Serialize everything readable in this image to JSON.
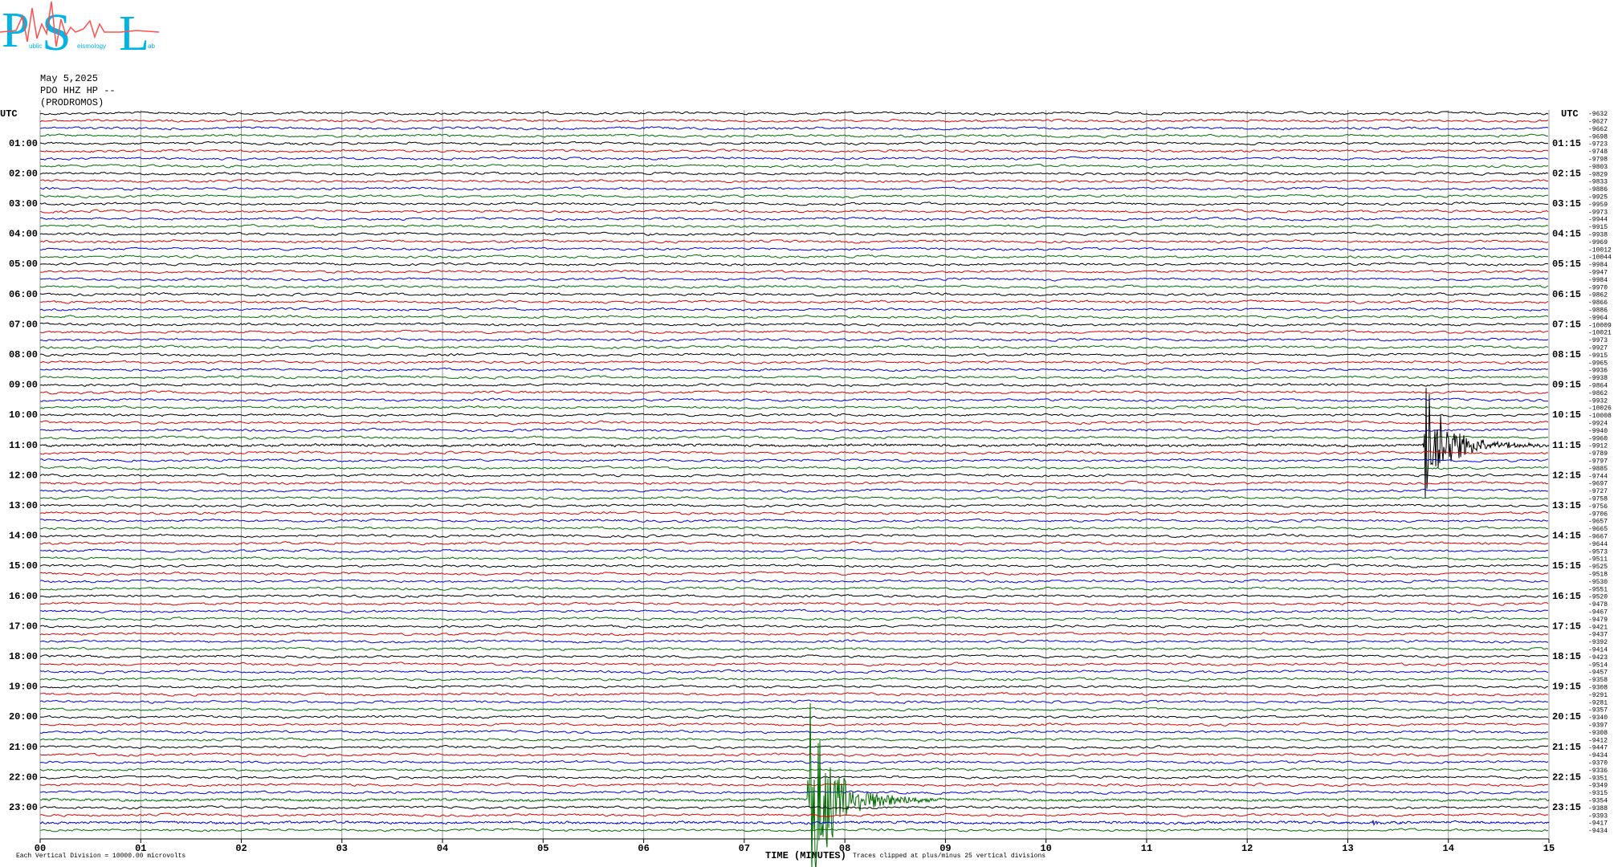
{
  "logo": {
    "letters": [
      "P",
      "S",
      "L"
    ],
    "words": [
      "ublic",
      "eismology",
      "ab"
    ]
  },
  "header": {
    "date": "May 5,2025",
    "station": "PDO HHZ HP --",
    "location": "(PRODROMOS)"
  },
  "left_axis": {
    "title": "UTC",
    "labels": [
      "01:00",
      "02:00",
      "03:00",
      "04:00",
      "05:00",
      "06:00",
      "07:00",
      "08:00",
      "09:00",
      "10:00",
      "11:00",
      "12:00",
      "13:00",
      "14:00",
      "15:00",
      "16:00",
      "17:00",
      "18:00",
      "19:00",
      "20:00",
      "21:00",
      "22:00",
      "23:00"
    ]
  },
  "right_axis": {
    "title": "UTC",
    "labels": [
      "01:15",
      "02:15",
      "03:15",
      "04:15",
      "05:15",
      "06:15",
      "07:15",
      "08:15",
      "09:15",
      "10:15",
      "11:15",
      "12:15",
      "13:15",
      "14:15",
      "15:15",
      "16:15",
      "17:15",
      "18:15",
      "19:15",
      "20:15",
      "21:15",
      "22:15",
      "23:15"
    ]
  },
  "trace_offsets": [
    -9632,
    -9627,
    -9662,
    -9698,
    -9723,
    -9748,
    -9798,
    -9803,
    -9829,
    -9833,
    -9886,
    -9925,
    -9959,
    -9973,
    -9944,
    -9915,
    -9938,
    -9969,
    -10012,
    -10044,
    -9984,
    -9947,
    -9984,
    -9970,
    -9862,
    -9866,
    -9886,
    -9964,
    -10009,
    -10021,
    -9973,
    -9927,
    -9915,
    -9965,
    -9936,
    -9938,
    -9864,
    -9862,
    -9932,
    -10026,
    -10008,
    -9924,
    -9940,
    -9960,
    -9912,
    -9789,
    -9797,
    -9885,
    -9744,
    -9697,
    -9727,
    -9758,
    -9756,
    -9706,
    -9657,
    -9665,
    -9667,
    -9644,
    -9573,
    -9511,
    -9525,
    -9518,
    -9530,
    -9551,
    -9520,
    -9478,
    -9467,
    -9479,
    -9421,
    -9437,
    -9392,
    -9414,
    -9423,
    -9514,
    -9457,
    -9358,
    -9308,
    -9291,
    -9281,
    -9357,
    -9340,
    -9397,
    -9308,
    -9412,
    -9447,
    -9434,
    -9370,
    -9336,
    -9351,
    -9349,
    -9315,
    -9354,
    -9388,
    -9393,
    -9417,
    -9434
  ],
  "trace_colors": [
    "#000000",
    "#e00000",
    "#0000e0",
    "#006e00"
  ],
  "x_axis": {
    "title": "TIME (MINUTES)",
    "ticks": [
      "00",
      "01",
      "02",
      "03",
      "04",
      "05",
      "06",
      "07",
      "08",
      "09",
      "10",
      "11",
      "12",
      "13",
      "14",
      "15"
    ]
  },
  "footer": {
    "scale_note": "Each Vertical Division = 10000.00 microvolts",
    "clip_note": "Traces clipped at plus/minus 25 vertical divisions"
  }
}
